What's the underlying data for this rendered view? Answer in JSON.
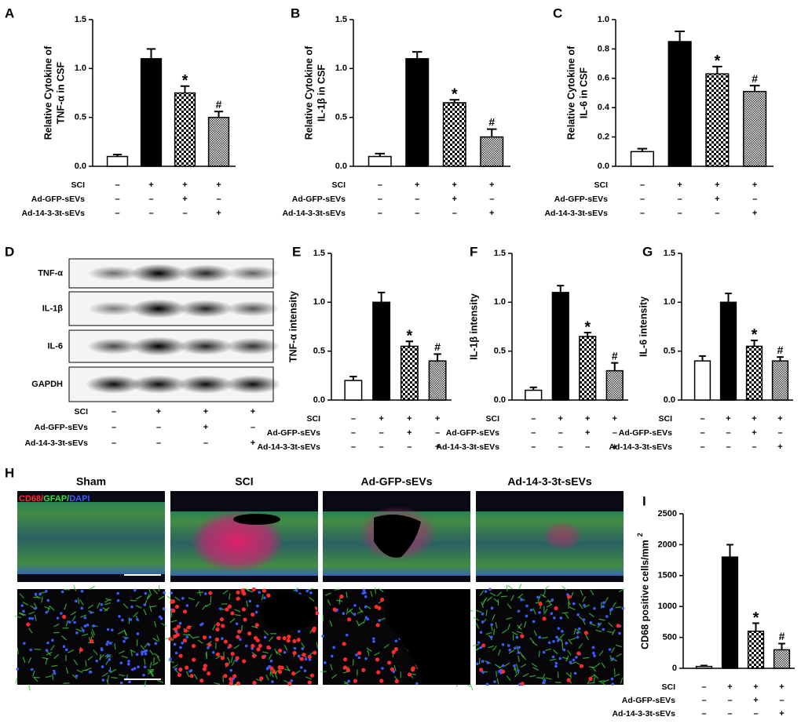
{
  "chart_data": [
    {
      "type": "bar",
      "panel": "A",
      "y_label": [
        "Relative Cytokine of",
        "TNF-α  in CSF"
      ],
      "values": [
        0.1,
        1.1,
        0.75,
        0.5
      ],
      "errors": [
        0.02,
        0.1,
        0.07,
        0.06
      ],
      "bar_styles": [
        "open",
        "solid",
        "checker",
        "fine"
      ],
      "annotations": [
        {
          "index": 2,
          "text": "*"
        },
        {
          "index": 3,
          "text": "#"
        }
      ],
      "ylim": [
        0,
        1.5
      ],
      "yticks": [
        {
          "value": 0,
          "label": "0.0"
        },
        0.5,
        {
          "value": 1,
          "label": "1.0"
        },
        1.5
      ],
      "conditions": [
        {
          "label": "SCI",
          "signs": [
            "–",
            "+",
            "+",
            "+"
          ]
        },
        {
          "label": "Ad-GFP-sEVs",
          "signs": [
            "–",
            "–",
            "+",
            "–"
          ]
        },
        {
          "label": "Ad-14-3-3t-sEVs",
          "signs": [
            "–",
            "–",
            "–",
            "+"
          ]
        }
      ]
    },
    {
      "type": "bar",
      "panel": "B",
      "y_label": [
        "Relative Cytokine of",
        "IL-1β  in CSF"
      ],
      "values": [
        0.1,
        1.1,
        0.65,
        0.3
      ],
      "errors": [
        0.03,
        0.07,
        0.03,
        0.08
      ],
      "bar_styles": [
        "open",
        "solid",
        "checker",
        "fine"
      ],
      "annotations": [
        {
          "index": 2,
          "text": "*"
        },
        {
          "index": 3,
          "text": "#"
        }
      ],
      "ylim": [
        0,
        1.5
      ],
      "yticks": [
        {
          "value": 0,
          "label": "0.0"
        },
        0.5,
        {
          "value": 1,
          "label": "1.0"
        },
        1.5
      ],
      "conditions": [
        {
          "label": "SCI",
          "signs": [
            "–",
            "+",
            "+",
            "+"
          ]
        },
        {
          "label": "Ad-GFP-sEVs",
          "signs": [
            "–",
            "–",
            "+",
            "–"
          ]
        },
        {
          "label": "Ad-14-3-3t-sEVs",
          "signs": [
            "–",
            "–",
            "–",
            "+"
          ]
        }
      ]
    },
    {
      "type": "bar",
      "panel": "C",
      "y_label": [
        "Relative Cytokine of",
        "IL-6 in CSF"
      ],
      "values": [
        0.1,
        0.85,
        0.63,
        0.51
      ],
      "errors": [
        0.02,
        0.07,
        0.05,
        0.04
      ],
      "bar_styles": [
        "open",
        "solid",
        "checker",
        "fine"
      ],
      "annotations": [
        {
          "index": 2,
          "text": "*"
        },
        {
          "index": 3,
          "text": "#"
        }
      ],
      "ylim": [
        0,
        1.0
      ],
      "yticks": [
        {
          "value": 0,
          "label": "0.0"
        },
        0.2,
        0.4,
        0.6,
        0.8,
        {
          "value": 1,
          "label": "1.0"
        }
      ],
      "conditions": [
        {
          "label": "SCI",
          "signs": [
            "–",
            "+",
            "+",
            "+"
          ]
        },
        {
          "label": "Ad-GFP-sEVs",
          "signs": [
            "–",
            "–",
            "+",
            "–"
          ]
        },
        {
          "label": "Ad-14-3-3t-sEVs",
          "signs": [
            "–",
            "–",
            "–",
            "+"
          ]
        }
      ]
    },
    {
      "type": "bar",
      "panel": "E",
      "y_label": [
        "TNF-α  intensity"
      ],
      "values": [
        0.2,
        1.0,
        0.55,
        0.4
      ],
      "errors": [
        0.04,
        0.1,
        0.05,
        0.07
      ],
      "bar_styles": [
        "open",
        "solid",
        "checker",
        "fine"
      ],
      "annotations": [
        {
          "index": 2,
          "text": "*"
        },
        {
          "index": 3,
          "text": "#"
        }
      ],
      "ylim": [
        0,
        1.5
      ],
      "yticks": [
        {
          "value": 0,
          "label": "0.0"
        },
        0.5,
        {
          "value": 1,
          "label": "1.0"
        },
        1.5
      ],
      "conditions": [
        {
          "label": "SCI",
          "signs": [
            "–",
            "+",
            "+",
            "+"
          ]
        },
        {
          "label": "Ad-GFP-sEVs",
          "signs": [
            "–",
            "–",
            "+",
            "–"
          ]
        },
        {
          "label": "Ad-14-3-3t-sEVs",
          "signs": [
            "–",
            "–",
            "–",
            "+"
          ]
        }
      ]
    },
    {
      "type": "bar",
      "panel": "F",
      "y_label": [
        "IL-1β  intensity"
      ],
      "values": [
        0.1,
        1.1,
        0.65,
        0.3
      ],
      "errors": [
        0.03,
        0.07,
        0.04,
        0.08
      ],
      "bar_styles": [
        "open",
        "solid",
        "checker",
        "fine"
      ],
      "annotations": [
        {
          "index": 2,
          "text": "*"
        },
        {
          "index": 3,
          "text": "#"
        }
      ],
      "ylim": [
        0,
        1.5
      ],
      "yticks": [
        {
          "value": 0,
          "label": "0.0"
        },
        0.5,
        {
          "value": 1,
          "label": "1.0"
        },
        1.5
      ],
      "conditions": [
        {
          "label": "SCI",
          "signs": [
            "–",
            "+",
            "+",
            "+"
          ]
        },
        {
          "label": "Ad-GFP-sEVs",
          "signs": [
            "–",
            "–",
            "+",
            "–"
          ]
        },
        {
          "label": "Ad-14-3-3t-sEVs",
          "signs": [
            "–",
            "–",
            "–",
            "+"
          ]
        }
      ]
    },
    {
      "type": "bar",
      "panel": "G",
      "y_label": [
        "IL-6 intensity"
      ],
      "values": [
        0.4,
        1.0,
        0.55,
        0.4
      ],
      "errors": [
        0.05,
        0.09,
        0.06,
        0.04
      ],
      "bar_styles": [
        "open",
        "solid",
        "checker",
        "fine"
      ],
      "annotations": [
        {
          "index": 2,
          "text": "*"
        },
        {
          "index": 3,
          "text": "#"
        }
      ],
      "ylim": [
        0,
        1.5
      ],
      "yticks": [
        {
          "value": 0,
          "label": "0.0"
        },
        0.5,
        {
          "value": 1,
          "label": "1.0"
        },
        1.5
      ],
      "conditions": [
        {
          "label": "SCI",
          "signs": [
            "–",
            "+",
            "+",
            "+"
          ]
        },
        {
          "label": "Ad-GFP-sEVs",
          "signs": [
            "–",
            "–",
            "+",
            "–"
          ]
        },
        {
          "label": "Ad-14-3-3t-sEVs",
          "signs": [
            "–",
            "–",
            "–",
            "+"
          ]
        }
      ]
    },
    {
      "type": "bar",
      "panel": "I",
      "y_label": [
        "CD68 positive cells/mm"
      ],
      "y_label_sup": "2",
      "values": [
        30,
        1800,
        600,
        300
      ],
      "errors": [
        15,
        200,
        130,
        100
      ],
      "bar_styles": [
        "open",
        "solid",
        "checker",
        "fine"
      ],
      "annotations": [
        {
          "index": 2,
          "text": "*"
        },
        {
          "index": 3,
          "text": "#"
        }
      ],
      "ylim": [
        0,
        2500
      ],
      "yticks": [
        0,
        500,
        1000,
        1500,
        2000,
        2500
      ],
      "conditions": [
        {
          "label": "SCI",
          "signs": [
            "–",
            "+",
            "+",
            "+"
          ]
        },
        {
          "label": "Ad-GFP-sEVs",
          "signs": [
            "–",
            "–",
            "+",
            "–"
          ]
        },
        {
          "label": "Ad-14-3-3t-sEVs",
          "signs": [
            "–",
            "–",
            "–",
            "+"
          ]
        }
      ]
    }
  ],
  "blot": {
    "panel": "D",
    "bands": [
      "TNF-α",
      "IL-1β",
      "IL-6",
      "GAPDH"
    ],
    "conditions": [
      {
        "label": "SCI",
        "signs": [
          "–",
          "+",
          "+",
          "+"
        ]
      },
      {
        "label": "Ad-GFP-sEVs",
        "signs": [
          "–",
          "–",
          "+",
          "–"
        ]
      },
      {
        "label": "Ad-14-3-3t-sEVs",
        "signs": [
          "–",
          "–",
          "–",
          "+"
        ]
      }
    ]
  },
  "microscopy": {
    "panel": "H",
    "groups": [
      "Sham",
      "SCI",
      "Ad-GFP-sEVs",
      "Ad-14-3-3t-sEVs"
    ],
    "stain_labels": [
      {
        "text": "CD68/",
        "color": "#ff2a2a"
      },
      {
        "text": "GFAP/",
        "color": "#3ce03c"
      },
      {
        "text": "DAPI",
        "color": "#3a5cff"
      }
    ]
  }
}
